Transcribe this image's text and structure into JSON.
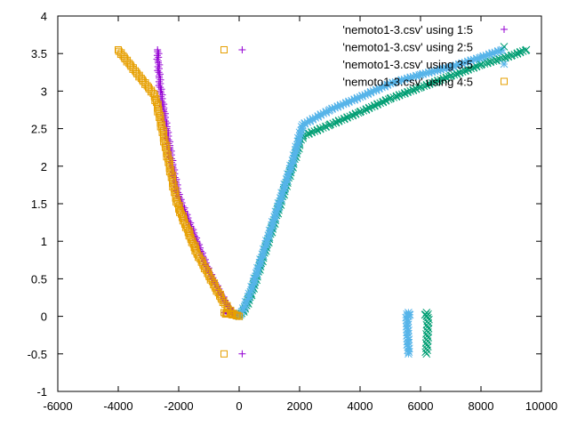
{
  "chart_data": {
    "type": "scatter",
    "title": "",
    "xlabel": "",
    "ylabel": "",
    "xlim": [
      -6000,
      10000
    ],
    "ylim": [
      -1,
      4
    ],
    "xticks": [
      -6000,
      -4000,
      -2000,
      0,
      2000,
      4000,
      6000,
      8000,
      10000
    ],
    "yticks": [
      -1,
      -0.5,
      0,
      0.5,
      1,
      1.5,
      2,
      2.5,
      3,
      3.5,
      4
    ],
    "grid": false,
    "legend_position": "top-right",
    "series": [
      {
        "name": "'nemoto1-3.csv' using 1:5",
        "marker": "plus",
        "color": "#9400d3",
        "points": [
          [
            -2700,
            3.55
          ],
          [
            -2680,
            3.4
          ],
          [
            -2650,
            3.2
          ],
          [
            -2600,
            3.0
          ],
          [
            -2500,
            2.75
          ],
          [
            -2400,
            2.5
          ],
          [
            -2300,
            2.25
          ],
          [
            -2200,
            2.0
          ],
          [
            -2100,
            1.8
          ],
          [
            -2000,
            1.6
          ],
          [
            -1800,
            1.4
          ],
          [
            -1600,
            1.2
          ],
          [
            -1400,
            1.0
          ],
          [
            -1200,
            0.8
          ],
          [
            -1000,
            0.6
          ],
          [
            -800,
            0.45
          ],
          [
            -600,
            0.3
          ],
          [
            -400,
            0.15
          ],
          [
            -200,
            0.05
          ],
          [
            0,
            0.0
          ],
          [
            -500,
            0.05
          ],
          [
            100,
            3.55
          ],
          [
            100,
            -0.5
          ]
        ]
      },
      {
        "name": "'nemoto1-3.csv' using 2:5",
        "marker": "x",
        "color": "#009e73",
        "points": [
          [
            0,
            0.0
          ],
          [
            200,
            0.1
          ],
          [
            400,
            0.3
          ],
          [
            600,
            0.55
          ],
          [
            800,
            0.8
          ],
          [
            1000,
            1.05
          ],
          [
            1200,
            1.3
          ],
          [
            1400,
            1.55
          ],
          [
            1600,
            1.8
          ],
          [
            1800,
            2.05
          ],
          [
            2000,
            2.3
          ],
          [
            2100,
            2.4
          ],
          [
            3000,
            2.55
          ],
          [
            4000,
            2.72
          ],
          [
            5000,
            2.9
          ],
          [
            6000,
            3.05
          ],
          [
            7000,
            3.2
          ],
          [
            8000,
            3.35
          ],
          [
            9000,
            3.47
          ],
          [
            9500,
            3.55
          ],
          [
            6200,
            0.0
          ],
          [
            6200,
            0.05
          ],
          [
            6150,
            0.02
          ],
          [
            6250,
            0.03
          ],
          [
            6200,
            -0.5
          ]
        ]
      },
      {
        "name": "'nemoto1-3.csv' using 3:5",
        "marker": "star",
        "color": "#56b4e9",
        "points": [
          [
            0,
            0.0
          ],
          [
            200,
            0.15
          ],
          [
            400,
            0.35
          ],
          [
            600,
            0.6
          ],
          [
            800,
            0.85
          ],
          [
            1000,
            1.1
          ],
          [
            1200,
            1.35
          ],
          [
            1400,
            1.6
          ],
          [
            1600,
            1.85
          ],
          [
            1800,
            2.1
          ],
          [
            2000,
            2.4
          ],
          [
            2100,
            2.55
          ],
          [
            3000,
            2.75
          ],
          [
            4000,
            2.92
          ],
          [
            5000,
            3.1
          ],
          [
            6000,
            3.22
          ],
          [
            7000,
            3.32
          ],
          [
            8000,
            3.45
          ],
          [
            8700,
            3.55
          ],
          [
            5600,
            0.0
          ],
          [
            5600,
            0.05
          ],
          [
            5650,
            0.02
          ],
          [
            5550,
            0.03
          ],
          [
            5600,
            -0.5
          ]
        ]
      },
      {
        "name": "'nemoto1-3.csv' using 4:5",
        "marker": "square",
        "color": "#e69f00",
        "points": [
          [
            -4000,
            3.55
          ],
          [
            -3800,
            3.45
          ],
          [
            -3600,
            3.35
          ],
          [
            -3400,
            3.25
          ],
          [
            -3200,
            3.15
          ],
          [
            -3000,
            3.05
          ],
          [
            -2800,
            2.95
          ],
          [
            -2700,
            2.8
          ],
          [
            -2600,
            2.6
          ],
          [
            -2500,
            2.4
          ],
          [
            -2400,
            2.2
          ],
          [
            -2300,
            2.0
          ],
          [
            -2200,
            1.8
          ],
          [
            -2100,
            1.6
          ],
          [
            -2000,
            1.45
          ],
          [
            -1800,
            1.25
          ],
          [
            -1600,
            1.05
          ],
          [
            -1400,
            0.85
          ],
          [
            -1200,
            0.7
          ],
          [
            -1000,
            0.55
          ],
          [
            -800,
            0.4
          ],
          [
            -600,
            0.25
          ],
          [
            -400,
            0.12
          ],
          [
            -200,
            0.04
          ],
          [
            0,
            0.0
          ],
          [
            -500,
            0.05
          ],
          [
            -450,
            0.03
          ],
          [
            -500,
            3.55
          ],
          [
            -500,
            -0.5
          ]
        ]
      }
    ]
  }
}
